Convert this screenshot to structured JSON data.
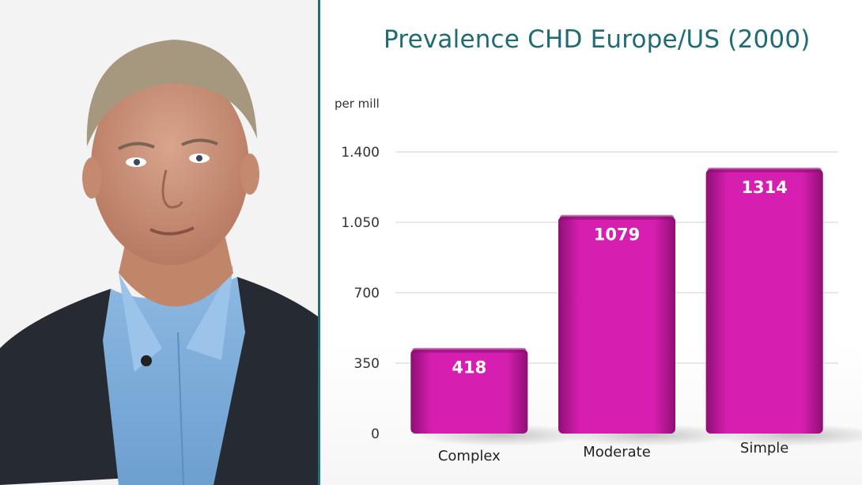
{
  "slide": {
    "title": "Prevalence CHD Europe/US (2000)",
    "unit_label": "per mill"
  },
  "colors": {
    "accent": "#1e6b75",
    "bar": "#d61fb0",
    "bar_dark": "#8e0f74",
    "grid": "#d0d0d0"
  },
  "chart_data": {
    "type": "bar",
    "title": "Prevalence CHD Europe/US (2000)",
    "ylabel": "per mill",
    "xlabel": "",
    "categories": [
      "Complex",
      "Moderate",
      "Simple"
    ],
    "values": [
      418,
      1079,
      1314
    ],
    "data_labels": [
      "418",
      "1079",
      "1314"
    ],
    "y_ticks": [
      0,
      350,
      700,
      1050,
      1400
    ],
    "y_tick_labels": [
      "0",
      "350",
      "700",
      "1.050",
      "1.400"
    ],
    "ylim": [
      0,
      1400
    ],
    "grid": true,
    "legend": "none"
  }
}
